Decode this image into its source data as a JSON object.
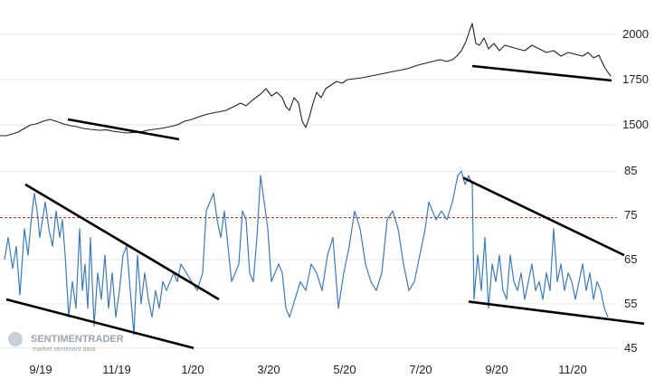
{
  "chart_data": [
    {
      "type": "line",
      "panel": "top",
      "y_ticks": [
        1500,
        1750,
        2000
      ],
      "ylim": [
        1380,
        2130
      ],
      "series": [
        {
          "color": "#222222",
          "x": [
            0,
            7,
            14,
            20,
            27,
            34,
            40,
            48,
            55,
            62,
            70,
            78,
            85,
            92,
            100,
            110,
            118,
            125,
            132,
            140,
            148,
            155,
            163,
            170,
            178,
            188,
            196,
            204,
            212,
            220,
            230,
            240,
            250,
            258,
            266,
            272,
            280,
            288,
            294,
            300,
            306,
            312,
            316,
            320,
            325,
            330,
            334,
            338,
            342,
            346,
            350,
            355,
            360,
            366,
            372,
            378,
            384,
            392,
            400,
            410,
            420,
            430,
            440,
            450,
            456,
            462,
            470,
            478,
            486,
            494,
            500,
            505,
            510,
            515,
            519,
            522,
            526,
            530,
            535,
            540,
            546,
            552,
            558,
            565,
            572,
            580,
            588,
            596,
            604,
            612,
            620,
            628,
            636,
            644,
            650,
            656,
            662,
            668,
            672,
            675
          ],
          "values": [
            1440,
            1440,
            1450,
            1460,
            1480,
            1500,
            1505,
            1520,
            1530,
            1520,
            1505,
            1495,
            1490,
            1480,
            1475,
            1470,
            1472,
            1465,
            1460,
            1455,
            1458,
            1460,
            1470,
            1475,
            1480,
            1490,
            1500,
            1520,
            1530,
            1545,
            1560,
            1570,
            1580,
            1600,
            1620,
            1605,
            1640,
            1670,
            1700,
            1660,
            1680,
            1650,
            1600,
            1580,
            1650,
            1620,
            1520,
            1485,
            1545,
            1620,
            1680,
            1650,
            1700,
            1720,
            1740,
            1730,
            1750,
            1755,
            1760,
            1770,
            1780,
            1790,
            1800,
            1810,
            1820,
            1830,
            1840,
            1850,
            1860,
            1850,
            1860,
            1880,
            1910,
            1960,
            2020,
            2060,
            1950,
            1940,
            1980,
            1920,
            1950,
            1910,
            1940,
            1930,
            1920,
            1910,
            1940,
            1920,
            1900,
            1910,
            1880,
            1900,
            1890,
            1880,
            1900,
            1870,
            1885,
            1820,
            1790,
            1770
          ]
        }
      ],
      "trendlines": [
        [
          [
            75,
            1530
          ],
          [
            198,
            1420
          ]
        ],
        [
          [
            522,
            1825
          ],
          [
            676,
            1745
          ]
        ]
      ]
    },
    {
      "type": "line",
      "panel": "bottom",
      "x_tick_labels": [
        "9/19",
        "11/19",
        "1/20",
        "3/20",
        "5/20",
        "7/20",
        "9/20",
        "11/20"
      ],
      "y_ticks": [
        45,
        55,
        65,
        75,
        85
      ],
      "ylim": [
        42.5,
        87.5
      ],
      "reference_line": {
        "value": 74.5,
        "color": "#c0392b",
        "style": "dashed"
      },
      "series": [
        {
          "color": "#3a7bbf",
          "x": [
            5,
            9,
            14,
            18,
            22,
            27,
            31,
            35,
            38,
            41,
            44,
            47,
            50,
            54,
            58,
            62,
            66,
            69,
            72,
            76,
            80,
            84,
            88,
            91,
            94,
            97,
            100,
            104,
            108,
            112,
            116,
            120,
            124,
            128,
            132,
            136,
            140,
            144,
            148,
            152,
            156,
            160,
            164,
            168,
            172,
            176,
            180,
            184,
            188,
            192,
            196,
            200,
            206,
            212,
            218,
            224,
            228,
            232,
            236,
            240,
            244,
            248,
            252,
            256,
            260,
            264,
            268,
            272,
            276,
            280,
            284,
            288,
            292,
            296,
            300,
            304,
            308,
            312,
            316,
            320,
            326,
            332,
            338,
            344,
            350,
            356,
            362,
            368,
            374,
            380,
            386,
            392,
            398,
            404,
            410,
            416,
            422,
            428,
            434,
            440,
            446,
            452,
            458,
            464,
            470,
            474,
            478,
            482,
            488,
            494,
            500,
            506,
            510,
            514,
            518,
            522,
            524,
            528,
            532,
            536,
            540,
            544,
            548,
            552,
            556,
            560,
            564,
            568,
            572,
            576,
            580,
            584,
            588,
            592,
            596,
            600,
            604,
            608,
            612,
            616,
            620,
            624,
            628,
            632,
            636,
            640,
            644,
            648,
            652,
            656,
            660,
            664,
            668,
            672
          ],
          "values": [
            65,
            70,
            63,
            68,
            57,
            72,
            66,
            75,
            80,
            76,
            70,
            74,
            78,
            72,
            68,
            76,
            70,
            74,
            66,
            52,
            60,
            54,
            72,
            58,
            64,
            54,
            70,
            50,
            62,
            56,
            66,
            54,
            62,
            52,
            58,
            66,
            68,
            58,
            48,
            66,
            55,
            62,
            56,
            52,
            58,
            54,
            60,
            58,
            60,
            62,
            60,
            64,
            62,
            60,
            58,
            62,
            76,
            78,
            80,
            74,
            70,
            76,
            68,
            60,
            62,
            64,
            76,
            74,
            62,
            60,
            70,
            84,
            78,
            72,
            60,
            62,
            64,
            62,
            54,
            52,
            56,
            60,
            58,
            64,
            62,
            58,
            66,
            70,
            54,
            62,
            68,
            76,
            72,
            64,
            60,
            58,
            62,
            74,
            76,
            72,
            64,
            58,
            60,
            66,
            72,
            78,
            76,
            74,
            76,
            74,
            78,
            84,
            85,
            82,
            84,
            82,
            56,
            66,
            58,
            70,
            54,
            64,
            60,
            66,
            58,
            56,
            66,
            60,
            58,
            62,
            56,
            60,
            64,
            58,
            60,
            56,
            62,
            58,
            72,
            60,
            64,
            58,
            62,
            60,
            56,
            60,
            64,
            58,
            62,
            56,
            60,
            58,
            54,
            52
          ]
        }
      ],
      "trendlines": [
        [
          [
            28,
            82
          ],
          [
            242,
            56
          ]
        ],
        [
          [
            7,
            56
          ],
          [
            214,
            45
          ]
        ],
        [
          [
            512,
            83.5
          ],
          [
            690,
            66
          ]
        ],
        [
          [
            518,
            55.5
          ],
          [
            712,
            50.5
          ]
        ]
      ]
    }
  ],
  "watermark": {
    "name": "SENTIMENTRADER",
    "tagline": "market sentiment data"
  },
  "colors": {
    "price_line": "#222222",
    "indicator_line": "#3a7bbf",
    "reference_line": "#c0392b",
    "trendline": "#000000",
    "grid": "#e6e6e6"
  }
}
